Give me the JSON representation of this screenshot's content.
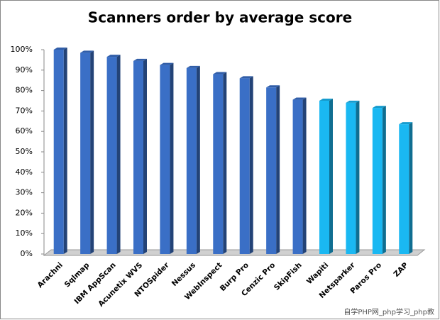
{
  "chart_data": {
    "type": "bar3d",
    "title": "Scanners order by average score",
    "categories": [
      "Arachni",
      "Sqlmap",
      "IBM AppScan",
      "Acunetix WVS",
      "NTOSpider",
      "Nessus",
      "WebInspect",
      "Burp Pro",
      "Cenzic  Pro",
      "SkipFish",
      "Wapiti",
      "Netsparker",
      "Paros Pro",
      "ZAP"
    ],
    "values": [
      100,
      98.5,
      96.5,
      94.5,
      92.5,
      91,
      88,
      86,
      81.5,
      75.5,
      75,
      74,
      71.5,
      63.5
    ],
    "colors": [
      "#3a6fc6",
      "#3a6fc6",
      "#3a6fc6",
      "#3a6fc6",
      "#3a6fc6",
      "#3a6fc6",
      "#3a6fc6",
      "#3a6fc6",
      "#3a6fc6",
      "#3a6fc6",
      "#1ab8f2",
      "#1ab8f2",
      "#1ab8f2",
      "#1ab8f2"
    ],
    "ylim": [
      0,
      100
    ],
    "yticks": [
      {
        "value": 0,
        "label": "0%"
      },
      {
        "value": 10,
        "label": "10%"
      },
      {
        "value": 20,
        "label": "20%"
      },
      {
        "value": 30,
        "label": "30%"
      },
      {
        "value": 40,
        "label": "40%"
      },
      {
        "value": 50,
        "label": "50%"
      },
      {
        "value": 60,
        "label": "60%"
      },
      {
        "value": 70,
        "label": "70%"
      },
      {
        "value": 80,
        "label": "80%"
      },
      {
        "value": 90,
        "label": "90%"
      },
      {
        "value": 100,
        "label": "100%"
      }
    ],
    "grid": false,
    "watermark": "自学PHP网_php学习_php教"
  }
}
